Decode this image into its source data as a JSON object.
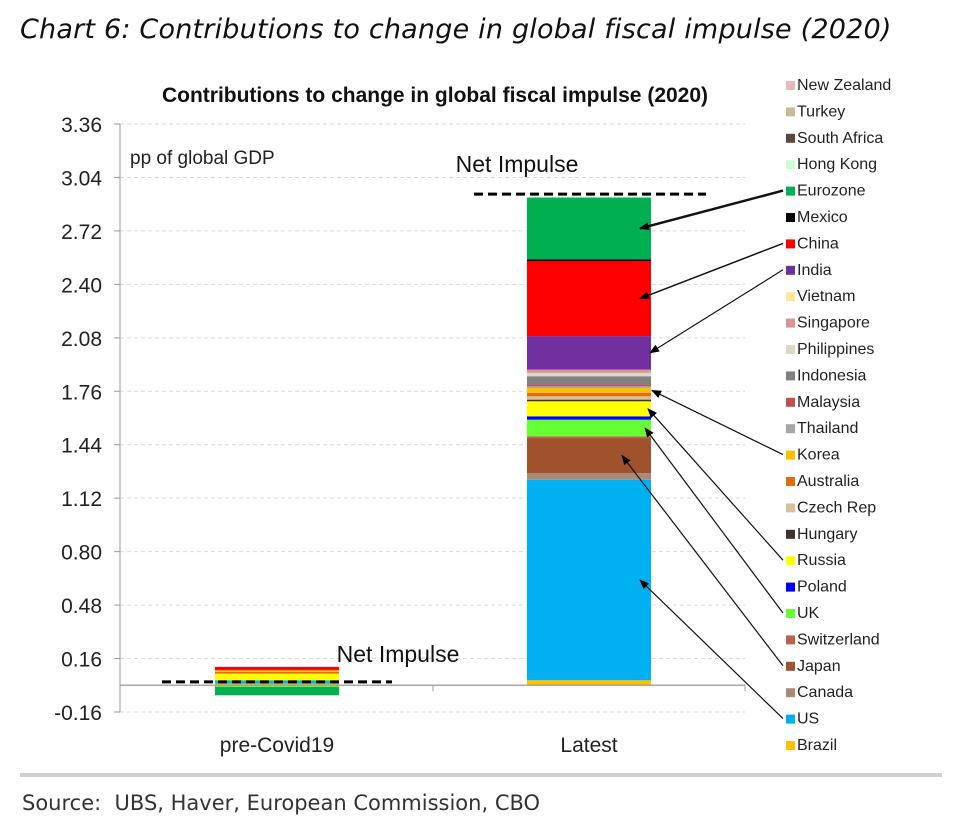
{
  "caption": "Chart 6: Contributions to change in global fiscal impulse (2020)",
  "source": "Source:  UBS, Haver, European Commission, CBO",
  "chart_data": {
    "type": "bar",
    "stacked": true,
    "title": "Contributions to change in global fiscal impulse (2020)",
    "ylabel": "pp of global GDP",
    "ylim": [
      -0.16,
      3.36
    ],
    "yticks": [
      "3.36",
      "3.04",
      "2.72",
      "2.40",
      "2.08",
      "1.76",
      "1.44",
      "1.12",
      "0.80",
      "0.48",
      "0.16",
      "-0.16"
    ],
    "grid": true,
    "categories": [
      "pre-Covid19",
      "Latest"
    ],
    "legend_position": "right",
    "net_impulse_label": "Net Impulse",
    "net_impulse": [
      0.02,
      2.94
    ],
    "series": [
      {
        "name": "New Zealand",
        "color": "#e6b8b7",
        "values": [
          0,
          0
        ]
      },
      {
        "name": "Turkey",
        "color": "#c4bd97",
        "values": [
          0,
          0
        ]
      },
      {
        "name": "South Africa",
        "color": "#5d4637",
        "values": [
          0,
          0
        ]
      },
      {
        "name": "Hong Kong",
        "color": "#ccffcc",
        "values": [
          0,
          0
        ]
      },
      {
        "name": "Eurozone",
        "color": "#00b050",
        "values": [
          -0.05,
          0.37
        ]
      },
      {
        "name": "Mexico",
        "color": "#000000",
        "values": [
          0,
          0.01
        ]
      },
      {
        "name": "China",
        "color": "#ff0000",
        "values": [
          0.02,
          0.45
        ]
      },
      {
        "name": "India",
        "color": "#7030a0",
        "values": [
          0,
          0.2
        ]
      },
      {
        "name": "Vietnam",
        "color": "#ffe699",
        "values": [
          0,
          0
        ]
      },
      {
        "name": "Singapore",
        "color": "#da9694",
        "values": [
          0,
          0.02
        ]
      },
      {
        "name": "Philippines",
        "color": "#ddd9c4",
        "values": [
          0,
          0.02
        ]
      },
      {
        "name": "Indonesia",
        "color": "#808080",
        "values": [
          0,
          0.05
        ]
      },
      {
        "name": "Malaysia",
        "color": "#c0504d",
        "values": [
          0,
          0.01
        ]
      },
      {
        "name": "Thailand",
        "color": "#a6a6a6",
        "values": [
          0,
          0.01
        ]
      },
      {
        "name": "Korea",
        "color": "#ffc000",
        "values": [
          0.01,
          0.03
        ]
      },
      {
        "name": "Australia",
        "color": "#e26b0a",
        "values": [
          0.01,
          0.02
        ]
      },
      {
        "name": "Czech Rep",
        "color": "#d9c19b",
        "values": [
          0,
          0.02
        ]
      },
      {
        "name": "Hungary",
        "color": "#3f3226",
        "values": [
          0,
          0.01
        ]
      },
      {
        "name": "Russia",
        "color": "#ffff00",
        "values": [
          0.04,
          0.09
        ]
      },
      {
        "name": "Poland",
        "color": "#0000ff",
        "values": [
          0,
          0.02
        ]
      },
      {
        "name": "UK",
        "color": "#66ff33",
        "values": [
          -0.01,
          0.1
        ]
      },
      {
        "name": "Switzerland",
        "color": "#c0614d",
        "values": [
          0,
          0.01
        ]
      },
      {
        "name": "Japan",
        "color": "#a0522d",
        "values": [
          0,
          0.21
        ]
      },
      {
        "name": "Canada",
        "color": "#a98a76",
        "values": [
          0,
          0.04
        ]
      },
      {
        "name": "US",
        "color": "#00b0f0",
        "values": [
          0.02,
          1.2
        ]
      },
      {
        "name": "Brazil",
        "color": "#ffc000",
        "values": [
          0.01,
          0.03
        ]
      }
    ]
  }
}
